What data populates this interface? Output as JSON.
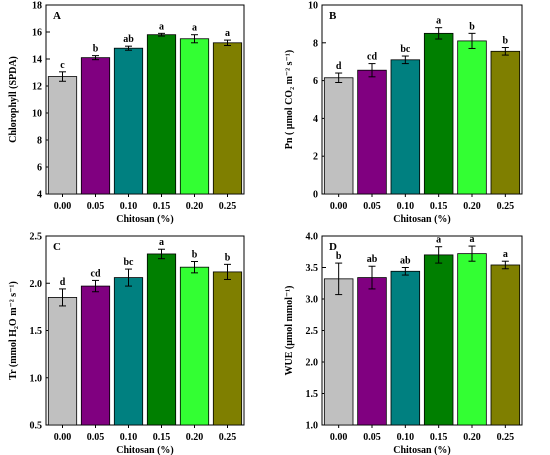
{
  "chart_data": [
    {
      "panel_label": "A",
      "type": "bar",
      "categories": [
        "0.00",
        "0.05",
        "0.10",
        "0.15",
        "0.20",
        "0.25"
      ],
      "values": [
        12.7,
        14.1,
        14.8,
        15.8,
        15.5,
        15.2
      ],
      "errors": [
        0.35,
        0.15,
        0.15,
        0.1,
        0.3,
        0.2
      ],
      "letters": [
        "c",
        "b",
        "ab",
        "a",
        "a",
        "a"
      ],
      "colors": [
        "#c0c0c0",
        "#800080",
        "#008080",
        "#007f00",
        "#33ff33",
        "#7f7f00"
      ],
      "xlabel": "Chitosan (%)",
      "ylabel": "Chlorophyll (SPDA)",
      "ylim": [
        4,
        18
      ],
      "yticks": [
        "4",
        "6",
        "8",
        "10",
        "12",
        "14",
        "16",
        "18"
      ]
    },
    {
      "panel_label": "B",
      "type": "bar",
      "categories": [
        "0.00",
        "0.05",
        "0.10",
        "0.15",
        "0.20",
        "0.25"
      ],
      "values": [
        6.15,
        6.55,
        7.1,
        8.5,
        8.1,
        7.55
      ],
      "errors": [
        0.25,
        0.35,
        0.2,
        0.3,
        0.4,
        0.2
      ],
      "letters": [
        "d",
        "cd",
        "bc",
        "a",
        "b",
        "b"
      ],
      "colors": [
        "#c0c0c0",
        "#800080",
        "#008080",
        "#007f00",
        "#33ff33",
        "#7f7f00"
      ],
      "xlabel": "Chitosan (%)",
      "ylabel": "Pn ( μmol CO₂ m⁻² s⁻¹)",
      "ylim": [
        0,
        10
      ],
      "yticks": [
        "0",
        "2",
        "4",
        "6",
        "8",
        "10"
      ]
    },
    {
      "panel_label": "C",
      "type": "bar",
      "categories": [
        "0.00",
        "0.05",
        "0.10",
        "0.15",
        "0.20",
        "0.25"
      ],
      "values": [
        1.85,
        1.97,
        2.06,
        2.31,
        2.17,
        2.12
      ],
      "errors": [
        0.09,
        0.06,
        0.09,
        0.05,
        0.06,
        0.08
      ],
      "letters": [
        "d",
        "cd",
        "bc",
        "a",
        "b",
        "b"
      ],
      "colors": [
        "#c0c0c0",
        "#800080",
        "#008080",
        "#007f00",
        "#33ff33",
        "#7f7f00"
      ],
      "xlabel": "Chitosan (%)",
      "ylabel": "Tr (mmol H₂O m⁻² s⁻¹)",
      "ylim": [
        0.5,
        2.5
      ],
      "yticks": [
        "0.5",
        "1.0",
        "1.5",
        "2.0",
        "2.5"
      ]
    },
    {
      "panel_label": "D",
      "type": "bar",
      "categories": [
        "0.00",
        "0.05",
        "0.10",
        "0.15",
        "0.20",
        "0.25"
      ],
      "values": [
        3.32,
        3.34,
        3.44,
        3.7,
        3.72,
        3.54
      ],
      "errors": [
        0.25,
        0.18,
        0.06,
        0.13,
        0.12,
        0.06
      ],
      "letters": [
        "b",
        "ab",
        "ab",
        "a",
        "a",
        "a"
      ],
      "colors": [
        "#c0c0c0",
        "#800080",
        "#008080",
        "#007f00",
        "#33ff33",
        "#7f7f00"
      ],
      "xlabel": "Chitosan (%)",
      "ylabel": "WUE (μmol mmol⁻¹)",
      "ylim": [
        1.0,
        4.0
      ],
      "yticks": [
        "1.0",
        "1.5",
        "2.0",
        "2.5",
        "3.0",
        "3.5",
        "4.0"
      ]
    }
  ]
}
